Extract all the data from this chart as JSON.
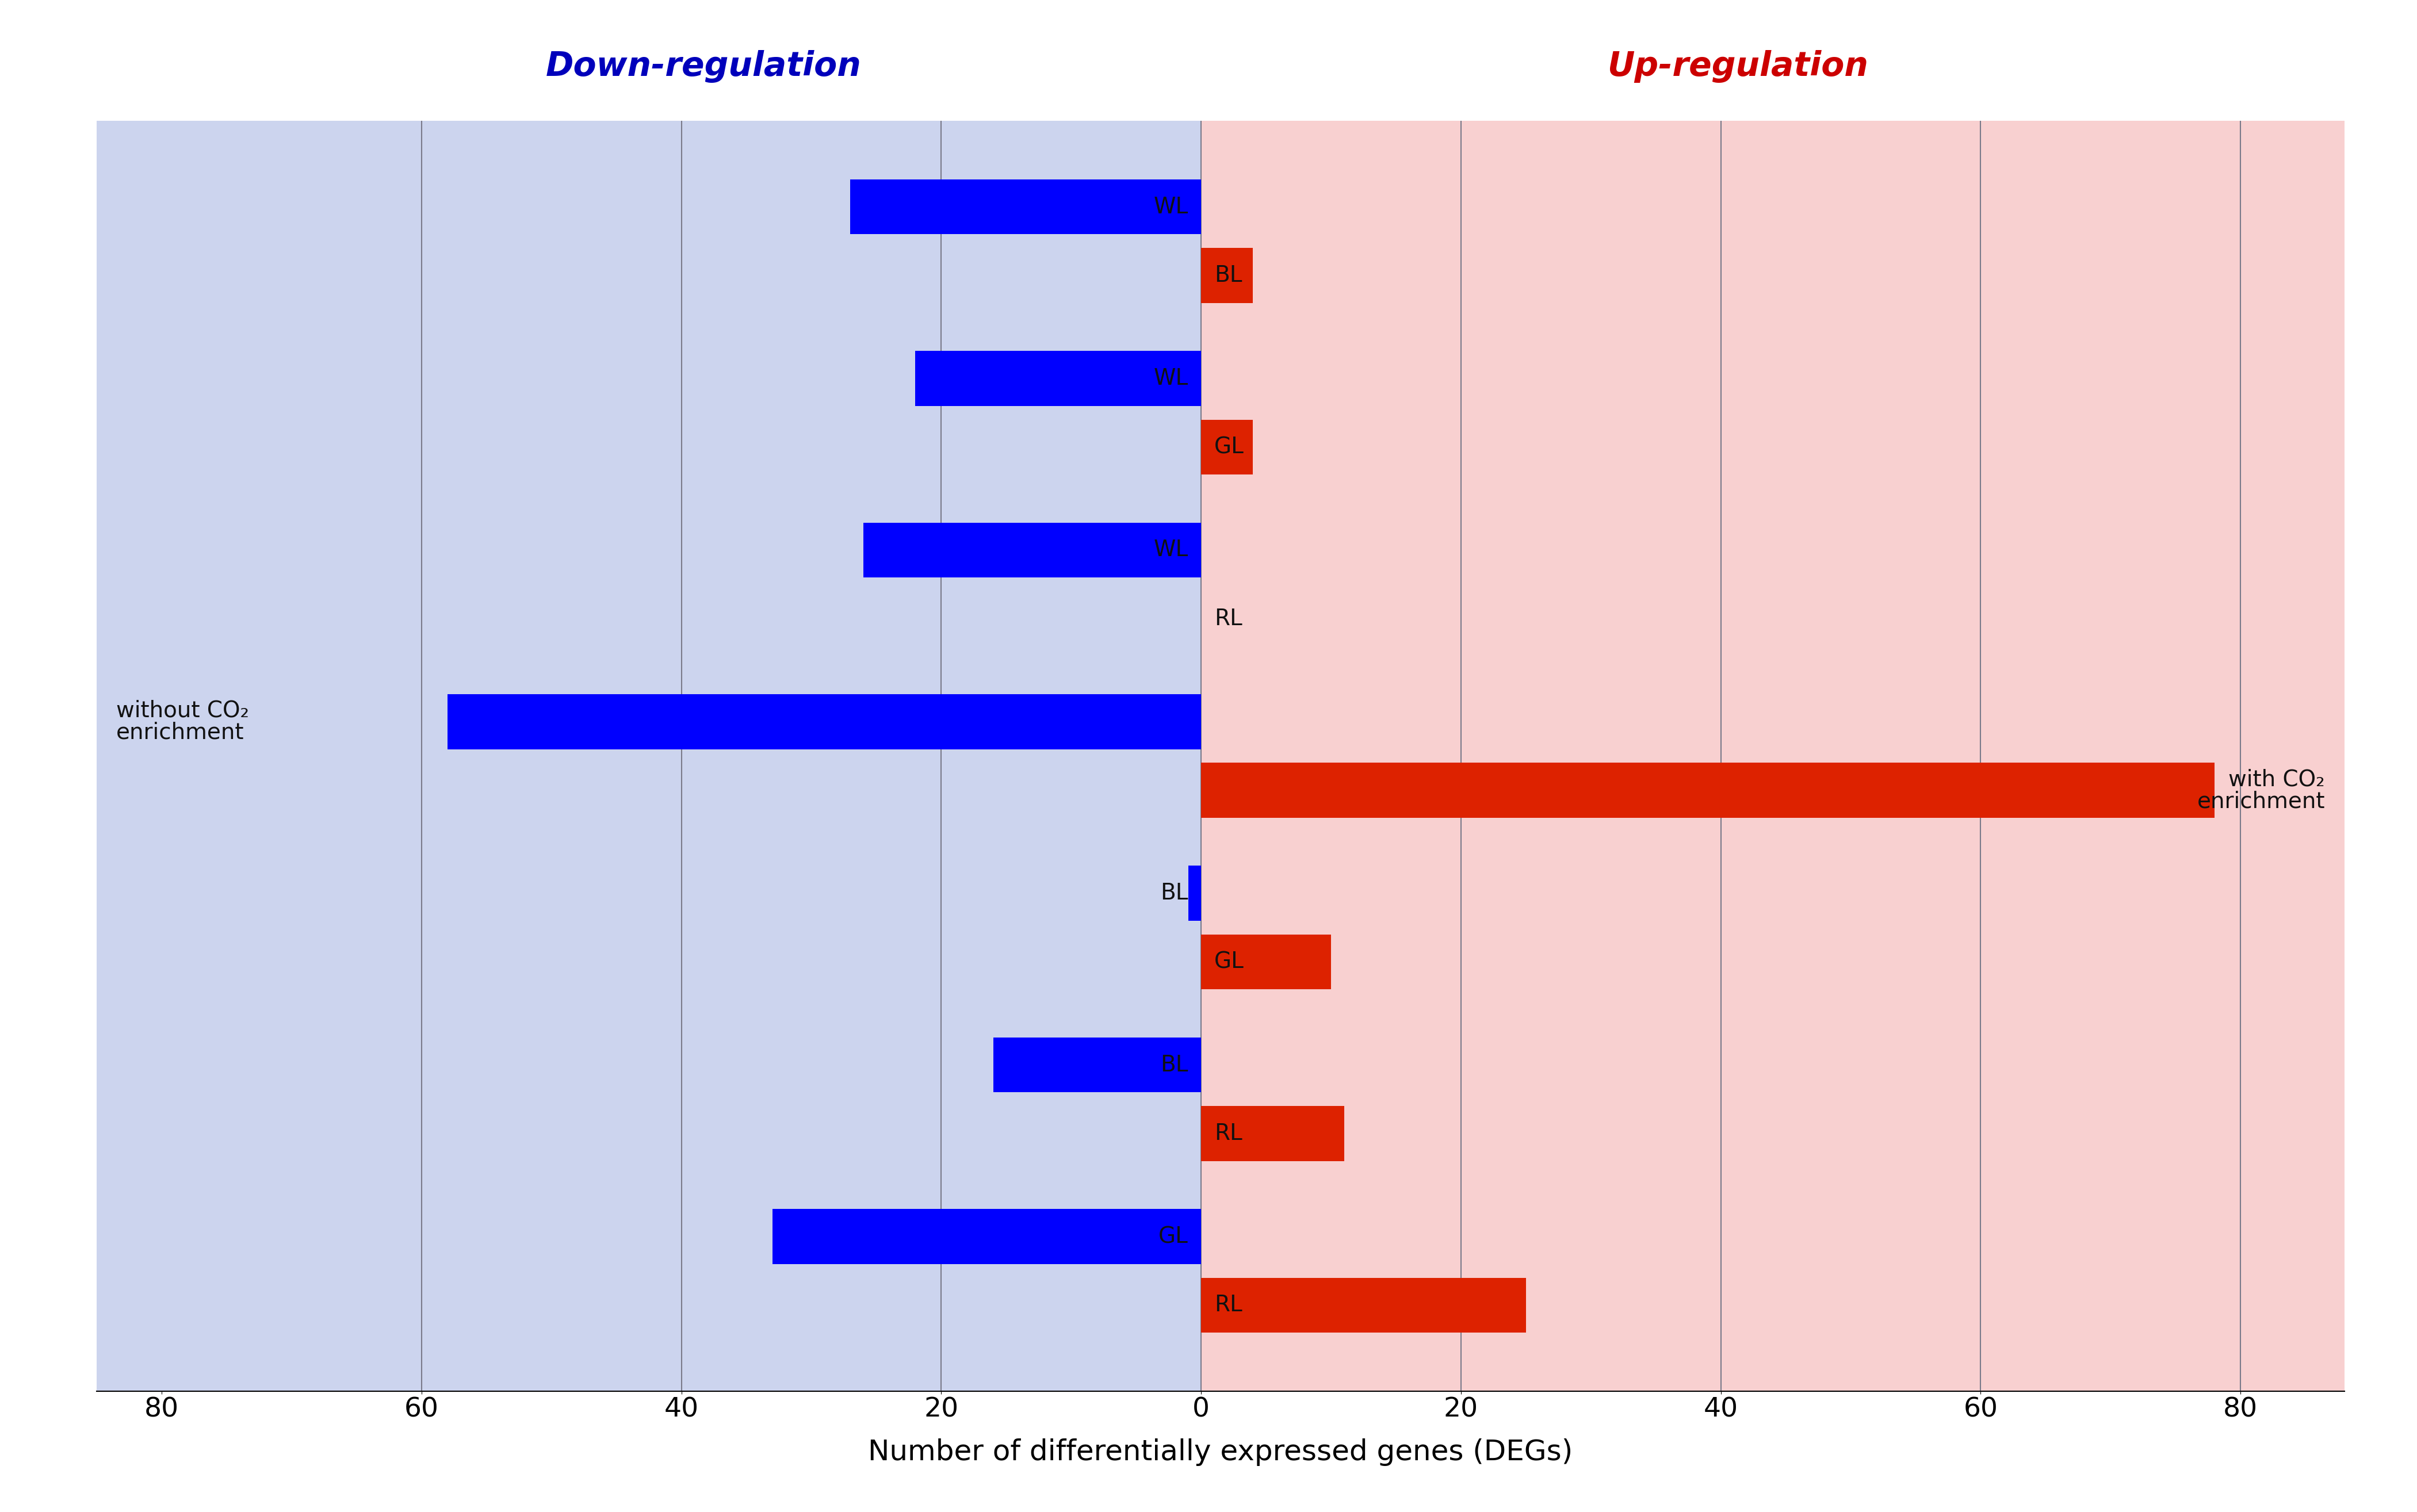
{
  "bars": [
    {
      "label_left": "WL",
      "label_right": "BL",
      "blue_val": -27,
      "red_val": 4,
      "y": 8
    },
    {
      "label_left": "WL",
      "label_right": "GL",
      "blue_val": -22,
      "red_val": 4,
      "y": 7
    },
    {
      "label_left": "WL",
      "label_right": "RL",
      "blue_val": -26,
      "red_val": 0,
      "y": 6
    },
    {
      "label_left": null,
      "label_right": null,
      "blue_val": -58,
      "red_val": 78,
      "y": 5
    },
    {
      "label_left": "BL",
      "label_right": "GL",
      "blue_val": -1,
      "red_val": 10,
      "y": 4
    },
    {
      "label_left": "BL",
      "label_right": "RL",
      "blue_val": -16,
      "red_val": 11,
      "y": 3
    },
    {
      "label_left": "GL",
      "label_right": "RL",
      "blue_val": -33,
      "red_val": 25,
      "y": 2
    }
  ],
  "xlim": [
    -85,
    88
  ],
  "ylim": [
    1.3,
    8.7
  ],
  "xticks": [
    -80,
    -60,
    -40,
    -20,
    0,
    20,
    40,
    60,
    80
  ],
  "xticklabels": [
    "80",
    "60",
    "40",
    "20",
    "0",
    "20",
    "40",
    "60",
    "80"
  ],
  "xlabel": "Number of differentially expressed genes (DEGs)",
  "bar_height": 0.32,
  "bar_gap": 0.08,
  "blue_color": "#0000ff",
  "red_color": "#dd2200",
  "bg_left": "#ccd4ee",
  "bg_right": "#f8d0d0",
  "title_left": "Down-regulation",
  "title_right": "Up-regulation",
  "title_left_color": "#0000bb",
  "title_right_color": "#cc0000",
  "label_left_side_line1": "without CO₂",
  "label_left_side_line2": "enrichment",
  "label_right_side_line1": "with CO₂",
  "label_right_side_line2": "enrichment",
  "gridlines_x": [
    -60,
    -40,
    -20,
    0,
    20,
    40,
    60,
    80
  ],
  "gridline_color": "#7a7a8a"
}
